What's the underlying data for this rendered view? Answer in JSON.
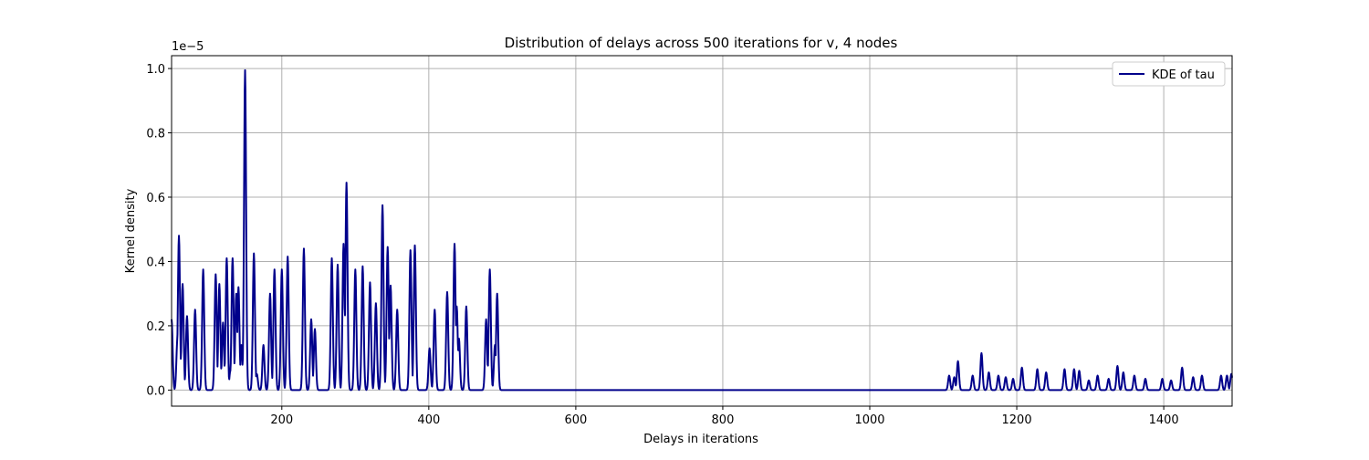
{
  "chart_data": {
    "type": "line",
    "title": "Distribution of delays across 500 iterations for v, 4 nodes",
    "xlabel": "Delays in iterations",
    "ylabel": "Kernel density",
    "y_multiplier_label": "1e−5",
    "y_scale_exponent": -5,
    "xlim": [
      50,
      1493
    ],
    "ylim": [
      -0.05,
      1.04
    ],
    "xticks": [
      200,
      400,
      600,
      800,
      1000,
      1200,
      1400
    ],
    "xtick_labels": [
      "200",
      "400",
      "600",
      "800",
      "1000",
      "1200",
      "1400"
    ],
    "yticks": [
      0.0,
      0.2,
      0.4,
      0.6,
      0.8,
      1.0
    ],
    "ytick_labels": [
      "0.0",
      "0.2",
      "0.4",
      "0.6",
      "0.8",
      "1.0"
    ],
    "grid": true,
    "legend_position": "top-right",
    "series": [
      {
        "name": "KDE of tau",
        "color": "#00008b",
        "peaks": [
          [
            50,
            0.22
          ],
          [
            58,
            0.16
          ],
          [
            60,
            0.48
          ],
          [
            65,
            0.33
          ],
          [
            71,
            0.23
          ],
          [
            82,
            0.25
          ],
          [
            93,
            0.375
          ],
          [
            110,
            0.36
          ],
          [
            115,
            0.33
          ],
          [
            120,
            0.21
          ],
          [
            125,
            0.41
          ],
          [
            130,
            0.06
          ],
          [
            133,
            0.41
          ],
          [
            138,
            0.3
          ],
          [
            141,
            0.32
          ],
          [
            145,
            0.14
          ],
          [
            150,
            0.995
          ],
          [
            162,
            0.425
          ],
          [
            166,
            0.05
          ],
          [
            175,
            0.14
          ],
          [
            184,
            0.3
          ],
          [
            190,
            0.375
          ],
          [
            200,
            0.375
          ],
          [
            208,
            0.415
          ],
          [
            230,
            0.44
          ],
          [
            240,
            0.22
          ],
          [
            245,
            0.19
          ],
          [
            268,
            0.41
          ],
          [
            276,
            0.39
          ],
          [
            284,
            0.455
          ],
          [
            288,
            0.645
          ],
          [
            300,
            0.375
          ],
          [
            310,
            0.385
          ],
          [
            320,
            0.335
          ],
          [
            328,
            0.27
          ],
          [
            337,
            0.575
          ],
          [
            344,
            0.445
          ],
          [
            348,
            0.325
          ],
          [
            357,
            0.25
          ],
          [
            375,
            0.435
          ],
          [
            381,
            0.45
          ],
          [
            401,
            0.13
          ],
          [
            408,
            0.25
          ],
          [
            425,
            0.305
          ],
          [
            435,
            0.455
          ],
          [
            438,
            0.26
          ],
          [
            441,
            0.16
          ],
          [
            451,
            0.26
          ],
          [
            478,
            0.22
          ],
          [
            483,
            0.375
          ],
          [
            490,
            0.14
          ],
          [
            493,
            0.3
          ],
          [
            1108,
            0.045
          ],
          [
            1115,
            0.04
          ],
          [
            1120,
            0.09
          ],
          [
            1140,
            0.045
          ],
          [
            1152,
            0.115
          ],
          [
            1162,
            0.055
          ],
          [
            1175,
            0.045
          ],
          [
            1185,
            0.04
          ],
          [
            1195,
            0.035
          ],
          [
            1207,
            0.07
          ],
          [
            1228,
            0.065
          ],
          [
            1240,
            0.055
          ],
          [
            1265,
            0.065
          ],
          [
            1278,
            0.065
          ],
          [
            1285,
            0.06
          ],
          [
            1298,
            0.03
          ],
          [
            1310,
            0.045
          ],
          [
            1325,
            0.035
          ],
          [
            1337,
            0.075
          ],
          [
            1345,
            0.055
          ],
          [
            1360,
            0.045
          ],
          [
            1375,
            0.035
          ],
          [
            1398,
            0.035
          ],
          [
            1410,
            0.03
          ],
          [
            1425,
            0.07
          ],
          [
            1440,
            0.04
          ],
          [
            1452,
            0.045
          ],
          [
            1478,
            0.045
          ],
          [
            1486,
            0.045
          ],
          [
            1492,
            0.05
          ]
        ]
      }
    ]
  }
}
